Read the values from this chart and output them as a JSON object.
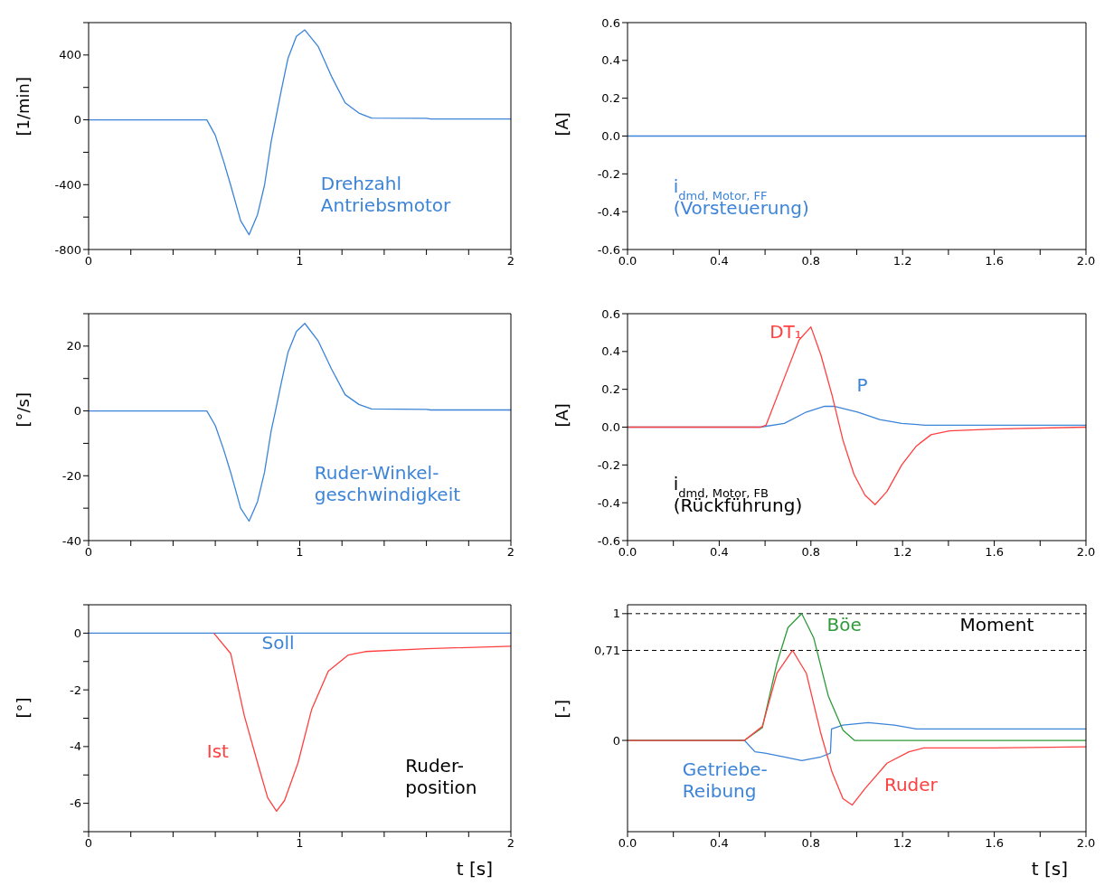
{
  "chart_data": [
    {
      "type": "line",
      "ylabel": "[1/min]",
      "xlim": [
        0,
        2
      ],
      "ylim": [
        -800,
        600
      ],
      "xticks": [
        0,
        {
          "value": 0.2,
          "label": null
        },
        {
          "value": 0.4,
          "label": null
        },
        {
          "value": 0.6,
          "label": null
        },
        {
          "value": 0.8,
          "label": null
        },
        1,
        {
          "value": 1.2,
          "label": null
        },
        {
          "value": 1.4,
          "label": null
        },
        {
          "value": 1.6,
          "label": null
        },
        {
          "value": 1.8,
          "label": null
        },
        2
      ],
      "yticks": [
        -800,
        {
          "value": -600,
          "label": null
        },
        -400,
        {
          "value": -200,
          "label": null
        },
        0,
        {
          "value": 200,
          "label": null
        },
        400,
        {
          "value": 600,
          "label": null
        }
      ],
      "series": [
        {
          "name": "Drehzahl\nAntriebsmotor",
          "color": "#3c84d8",
          "x": [
            0,
            0.56,
            0.6,
            0.64,
            0.673,
            0.72,
            0.76,
            0.8,
            0.833,
            0.865,
            0.885,
            0.912,
            0.944,
            0.984,
            1.024,
            1.088,
            1.15,
            1.215,
            1.28,
            1.34,
            1.6,
            1.62,
            2
          ],
          "values": [
            0,
            0,
            -95,
            -258,
            -404,
            -622,
            -709,
            -585,
            -404,
            -131,
            0,
            178,
            378,
            515,
            555,
            451,
            269,
            105,
            42,
            11,
            10,
            5,
            5
          ]
        }
      ]
    },
    {
      "type": "line",
      "ylabel": "[A]",
      "xlim": [
        0,
        2
      ],
      "ylim": [
        -0.6,
        0.6
      ],
      "xticks": [
        {
          "value": 0,
          "label": "0.0"
        },
        {
          "value": 0.2,
          "label": null
        },
        0.4,
        {
          "value": 0.6,
          "label": null
        },
        0.8,
        {
          "value": 1,
          "label": null
        },
        1.2,
        {
          "value": 1.4,
          "label": null
        },
        1.6,
        {
          "value": 1.8,
          "label": null
        },
        {
          "value": 2,
          "label": "2.0"
        }
      ],
      "yticks": [
        -0.6,
        -0.4,
        -0.2,
        {
          "value": 0,
          "label": "0.0"
        },
        0.2,
        0.4,
        0.6
      ],
      "series": [
        {
          "name": "i$_{dmd, Motor, FF}$\n(Vorsteuerung)",
          "color": "#3c84d8",
          "x": [
            0,
            2
          ],
          "values": [
            0,
            0
          ]
        }
      ]
    },
    {
      "type": "line",
      "ylabel": "[°/s]",
      "xlim": [
        0,
        2
      ],
      "ylim": [
        -40,
        30
      ],
      "xticks": [
        0,
        {
          "value": 0.2,
          "label": null
        },
        {
          "value": 0.4,
          "label": null
        },
        {
          "value": 0.6,
          "label": null
        },
        {
          "value": 0.8,
          "label": null
        },
        1,
        {
          "value": 1.2,
          "label": null
        },
        {
          "value": 1.4,
          "label": null
        },
        {
          "value": 1.6,
          "label": null
        },
        {
          "value": 1.8,
          "label": null
        },
        2
      ],
      "yticks": [
        -40,
        {
          "value": -30,
          "label": null
        },
        -20,
        {
          "value": -10,
          "label": null
        },
        0,
        {
          "value": 10,
          "label": null
        },
        20,
        {
          "value": 30,
          "label": null
        }
      ],
      "series": [
        {
          "name": "Ruder-Winkel-\ngeschwindigkeit",
          "color": "#3c84d8",
          "x": [
            0,
            0.56,
            0.6,
            0.64,
            0.673,
            0.72,
            0.76,
            0.8,
            0.833,
            0.865,
            0.885,
            0.912,
            0.944,
            0.984,
            1.024,
            1.088,
            1.15,
            1.215,
            1.28,
            1.34,
            1.6,
            1.62,
            2
          ],
          "values": [
            0,
            0,
            -4.5,
            -12,
            -19,
            -30,
            -34,
            -28,
            -19,
            -6,
            0,
            8.5,
            18,
            24.5,
            27,
            21.5,
            13,
            5,
            2,
            0.6,
            0.5,
            0.3,
            0.3
          ]
        }
      ]
    },
    {
      "type": "line",
      "ylabel": "[A]",
      "xlim": [
        0,
        2
      ],
      "ylim": [
        -0.6,
        0.6
      ],
      "xticks": [
        {
          "value": 0,
          "label": "0.0"
        },
        {
          "value": 0.2,
          "label": null
        },
        0.4,
        {
          "value": 0.6,
          "label": null
        },
        0.8,
        {
          "value": 1,
          "label": null
        },
        1.2,
        {
          "value": 1.4,
          "label": null
        },
        1.6,
        {
          "value": 1.8,
          "label": null
        },
        {
          "value": 2,
          "label": "2.0"
        }
      ],
      "yticks": [
        -0.6,
        -0.4,
        -0.2,
        {
          "value": 0,
          "label": "0.0"
        },
        0.2,
        0.4,
        0.6
      ],
      "annotations": [
        "i$_{dmd, Motor, FB}$\n(Rückführung)"
      ],
      "series": [
        {
          "name": "P",
          "color": "#3c84d8",
          "x": [
            0,
            0.58,
            0.684,
            0.78,
            0.86,
            0.9,
            1.004,
            1.1,
            1.196,
            1.3,
            2
          ],
          "values": [
            0,
            0,
            0.02,
            0.08,
            0.11,
            0.11,
            0.08,
            0.04,
            0.02,
            0.01,
            0.01
          ]
        },
        {
          "name": "DT₁",
          "color": "#ff4040",
          "x": [
            0,
            0.58,
            0.604,
            0.684,
            0.748,
            0.8,
            0.844,
            0.892,
            0.94,
            0.988,
            1.036,
            1.08,
            1.132,
            1.196,
            1.26,
            1.324,
            1.404,
            1.6,
            2
          ],
          "values": [
            0,
            0,
            0.01,
            0.26,
            0.46,
            0.53,
            0.38,
            0.17,
            -0.07,
            -0.25,
            -0.36,
            -0.41,
            -0.34,
            -0.2,
            -0.1,
            -0.04,
            -0.02,
            -0.01,
            0
          ]
        }
      ]
    },
    {
      "type": "line",
      "ylabel": "[°]",
      "xlabel": "t [s]",
      "xlim": [
        0,
        2
      ],
      "ylim": [
        -7,
        1
      ],
      "xticks": [
        0,
        {
          "value": 0.2,
          "label": null
        },
        {
          "value": 0.4,
          "label": null
        },
        {
          "value": 0.6,
          "label": null
        },
        {
          "value": 0.8,
          "label": null
        },
        1,
        {
          "value": 1.2,
          "label": null
        },
        {
          "value": 1.4,
          "label": null
        },
        {
          "value": 1.6,
          "label": null
        },
        {
          "value": 1.8,
          "label": null
        },
        2
      ],
      "yticks": [
        {
          "value": -7,
          "label": null
        },
        -6,
        {
          "value": -5,
          "label": null
        },
        -4,
        {
          "value": -3,
          "label": null
        },
        -2,
        {
          "value": -1,
          "label": null
        },
        0,
        {
          "value": 1,
          "label": null
        }
      ],
      "annotations": [
        "Ruder-\nposition"
      ],
      "series": [
        {
          "name": "Soll",
          "color": "#3c84d8",
          "x": [
            0,
            2
          ],
          "values": [
            0,
            0
          ]
        },
        {
          "name": "Ist",
          "color": "#ff4040",
          "x": [
            0.593,
            0.673,
            0.737,
            0.8,
            0.848,
            0.89,
            0.928,
            0.992,
            1.056,
            1.135,
            1.23,
            1.31,
            1.6,
            2
          ],
          "values": [
            0,
            -0.72,
            -2.9,
            -4.57,
            -5.8,
            -6.28,
            -5.9,
            -4.57,
            -2.7,
            -1.34,
            -0.77,
            -0.65,
            -0.55,
            -0.46
          ]
        }
      ]
    },
    {
      "type": "line",
      "ylabel": "[-]",
      "xlabel": "t [s]",
      "xlim": [
        0,
        2
      ],
      "ylim": [
        -0.72,
        1.07
      ],
      "xticks": [
        {
          "value": 0,
          "label": "0.0"
        },
        {
          "value": 0.2,
          "label": null
        },
        0.4,
        {
          "value": 0.6,
          "label": null
        },
        0.8,
        {
          "value": 1,
          "label": null
        },
        1.2,
        {
          "value": 1.4,
          "label": null
        },
        1.6,
        {
          "value": 1.8,
          "label": null
        },
        {
          "value": 2,
          "label": "2.0"
        }
      ],
      "yticks": [
        0,
        {
          "value": 0.71,
          "label": "0,71"
        },
        1
      ],
      "annotations": [
        "Moment"
      ],
      "ref_lines": [
        {
          "axis": "y",
          "value": 1,
          "color": "#000000",
          "line_style": "dashed"
        },
        {
          "axis": "y",
          "value": 0.71,
          "color": "#000000",
          "line_style": "dashed"
        }
      ],
      "series": [
        {
          "name": "Getriebe-\nReibung",
          "color": "#3c84d8",
          "x": [
            0,
            0.51,
            0.556,
            0.6,
            0.684,
            0.76,
            0.844,
            0.885,
            0.89,
            0.94,
            1.05,
            1.164,
            1.26,
            2
          ],
          "values": [
            0,
            0,
            -0.09,
            -0.1,
            -0.13,
            -0.16,
            -0.13,
            -0.1,
            0.09,
            0.12,
            0.14,
            0.12,
            0.09,
            0.09
          ]
        },
        {
          "name": "Böe",
          "color": "#2e9a3a",
          "x": [
            0,
            0.51,
            0.588,
            0.652,
            0.7,
            0.76,
            0.812,
            0.876,
            0.94,
            0.99,
            2
          ],
          "values": [
            0,
            0,
            0.1,
            0.61,
            0.89,
            1,
            0.81,
            0.35,
            0.08,
            0,
            0
          ]
        },
        {
          "name": "Ruder",
          "color": "#ff4040",
          "x": [
            0,
            0.51,
            0.588,
            0.652,
            0.72,
            0.78,
            0.844,
            0.892,
            0.94,
            0.98,
            1.036,
            1.132,
            1.228,
            1.292,
            1.6,
            2
          ],
          "values": [
            0,
            0,
            0.11,
            0.53,
            0.71,
            0.53,
            0.05,
            -0.25,
            -0.46,
            -0.51,
            -0.38,
            -0.18,
            -0.09,
            -0.06,
            -0.06,
            -0.05
          ]
        }
      ]
    }
  ]
}
